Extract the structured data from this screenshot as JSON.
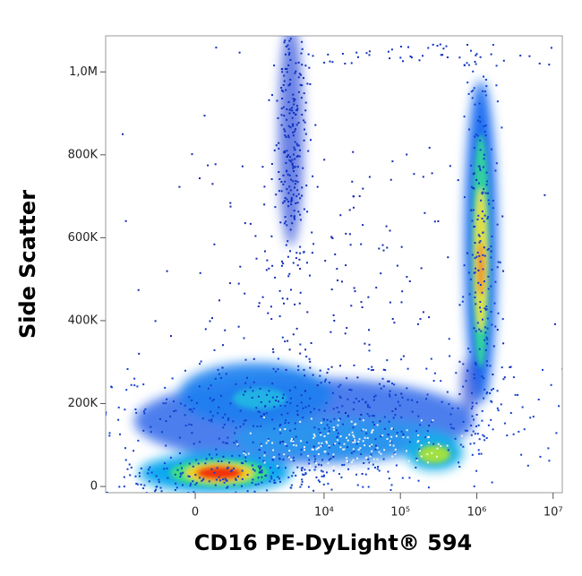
{
  "chart_data": {
    "type": "density",
    "x_label": "CD16 PE-DyLight® 594",
    "y_label": "Side Scatter",
    "xscale": "biexponential",
    "xlim": [
      -3050,
      13200000
    ],
    "xticks": [
      0,
      {
        "value": 10000,
        "label": "10⁴"
      },
      {
        "value": 100000,
        "label": "10⁵"
      },
      {
        "value": 1000000,
        "label": "10⁶"
      },
      {
        "value": 10000000,
        "label": "10⁷"
      }
    ],
    "ylim": [
      -15000,
      1087000
    ],
    "yticks": [
      0,
      {
        "value": 200000,
        "label": "200K"
      },
      {
        "value": 400000,
        "label": "400K"
      },
      {
        "value": 600000,
        "label": "600K"
      },
      {
        "value": 800000,
        "label": "800K"
      },
      {
        "value": 1000000,
        "label": "1,0M"
      }
    ]
  }
}
